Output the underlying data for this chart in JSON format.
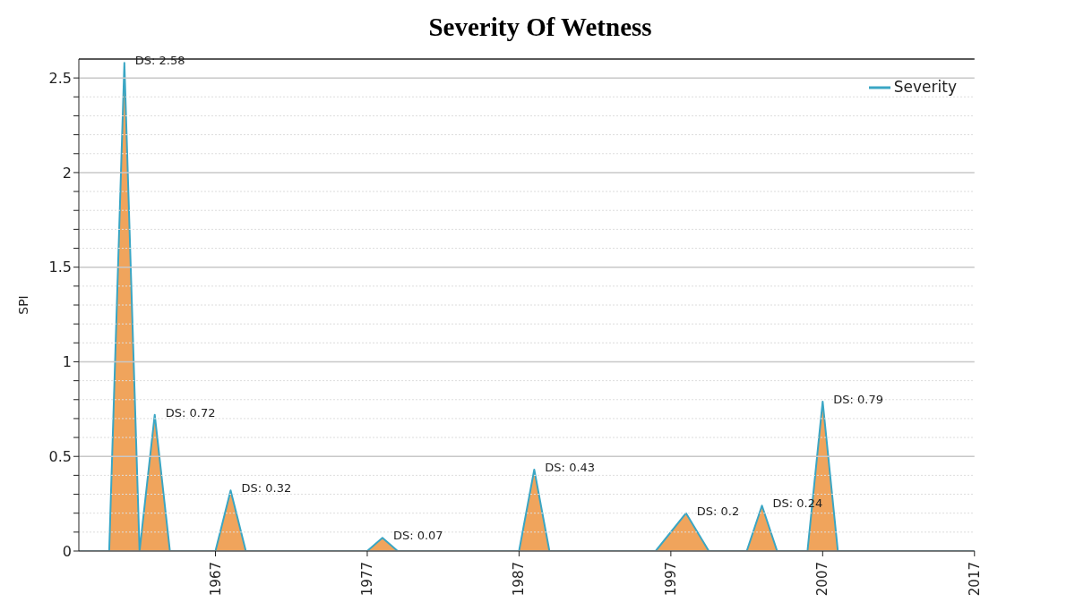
{
  "chart_data": {
    "type": "area",
    "title": "Severity Of Wetness",
    "ylabel": "SPI",
    "x": [
      1958,
      1960,
      1961,
      1962,
      1963,
      1964,
      1967,
      1968,
      1969,
      1977,
      1978,
      1979,
      1987,
      1988,
      1989,
      1996,
      1998,
      1999.5,
      2002,
      2003,
      2004,
      2006,
      2007,
      2008,
      2017
    ],
    "series": [
      {
        "name": "Severity",
        "color": "#3aa6c4",
        "colors": [
          "#f0a45c",
          "#f0a45c",
          "#f0a45c",
          "#f0a45c",
          "#f0a45c",
          "#f0a45c",
          "#f0a45c",
          "#f0a45c",
          "#f0a45c",
          "#f0a45c",
          "#f0a45c",
          "#f0a45c",
          "#f0a45c",
          "#f0a45c",
          "#f0a45c",
          "#f0a45c",
          "#f0a45c",
          "#f0a45c",
          "#f0a45c",
          "#f0a45c",
          "#f0a45c",
          "#f0a45c",
          "#f0a45c",
          "#f0a45c",
          "#f0a45c"
        ],
        "values": [
          0,
          0,
          2.58,
          0,
          0.72,
          0,
          0,
          0.32,
          0,
          0,
          0.07,
          0,
          0,
          0.43,
          0,
          0,
          0.2,
          0,
          0,
          0.24,
          0,
          0,
          0.79,
          0,
          0
        ],
        "value_labels": [
          null,
          null,
          "DS: 2.58",
          null,
          "DS: 0.72",
          null,
          null,
          "DS: 0.32",
          null,
          null,
          "DS: 0.07",
          null,
          null,
          "DS: 0.43",
          null,
          null,
          "DS: 0.2",
          null,
          null,
          "DS: 0.24",
          null,
          null,
          "DS: 0.79",
          null,
          null
        ]
      }
    ],
    "xlim": [
      1958,
      2017
    ],
    "xticks": [
      1967,
      1977,
      1987,
      1997,
      2007,
      2017
    ],
    "ylim": [
      0,
      2.6
    ],
    "yticks": [
      0,
      {
        "value": 0.1,
        "label": null
      },
      {
        "value": 0.2,
        "label": null
      },
      {
        "value": 0.3,
        "label": null
      },
      {
        "value": 0.4,
        "label": null
      },
      0.5,
      {
        "value": 0.6,
        "label": null
      },
      {
        "value": 0.7,
        "label": null
      },
      {
        "value": 0.8,
        "label": null
      },
      {
        "value": 0.9,
        "label": null
      },
      1,
      {
        "value": 1.1,
        "label": null
      },
      {
        "value": 1.2,
        "label": null
      },
      {
        "value": 1.3,
        "label": null
      },
      {
        "value": 1.4,
        "label": null
      },
      1.5,
      {
        "value": 1.6,
        "label": null
      },
      {
        "value": 1.7,
        "label": null
      },
      {
        "value": 1.8,
        "label": null
      },
      {
        "value": 1.9,
        "label": null
      },
      2,
      {
        "value": 2.1,
        "label": null
      },
      {
        "value": 2.2,
        "label": null
      },
      {
        "value": 2.3,
        "label": null
      },
      {
        "value": 2.4,
        "label": null
      },
      2.5
    ],
    "grid": "y",
    "legend": "top right"
  }
}
